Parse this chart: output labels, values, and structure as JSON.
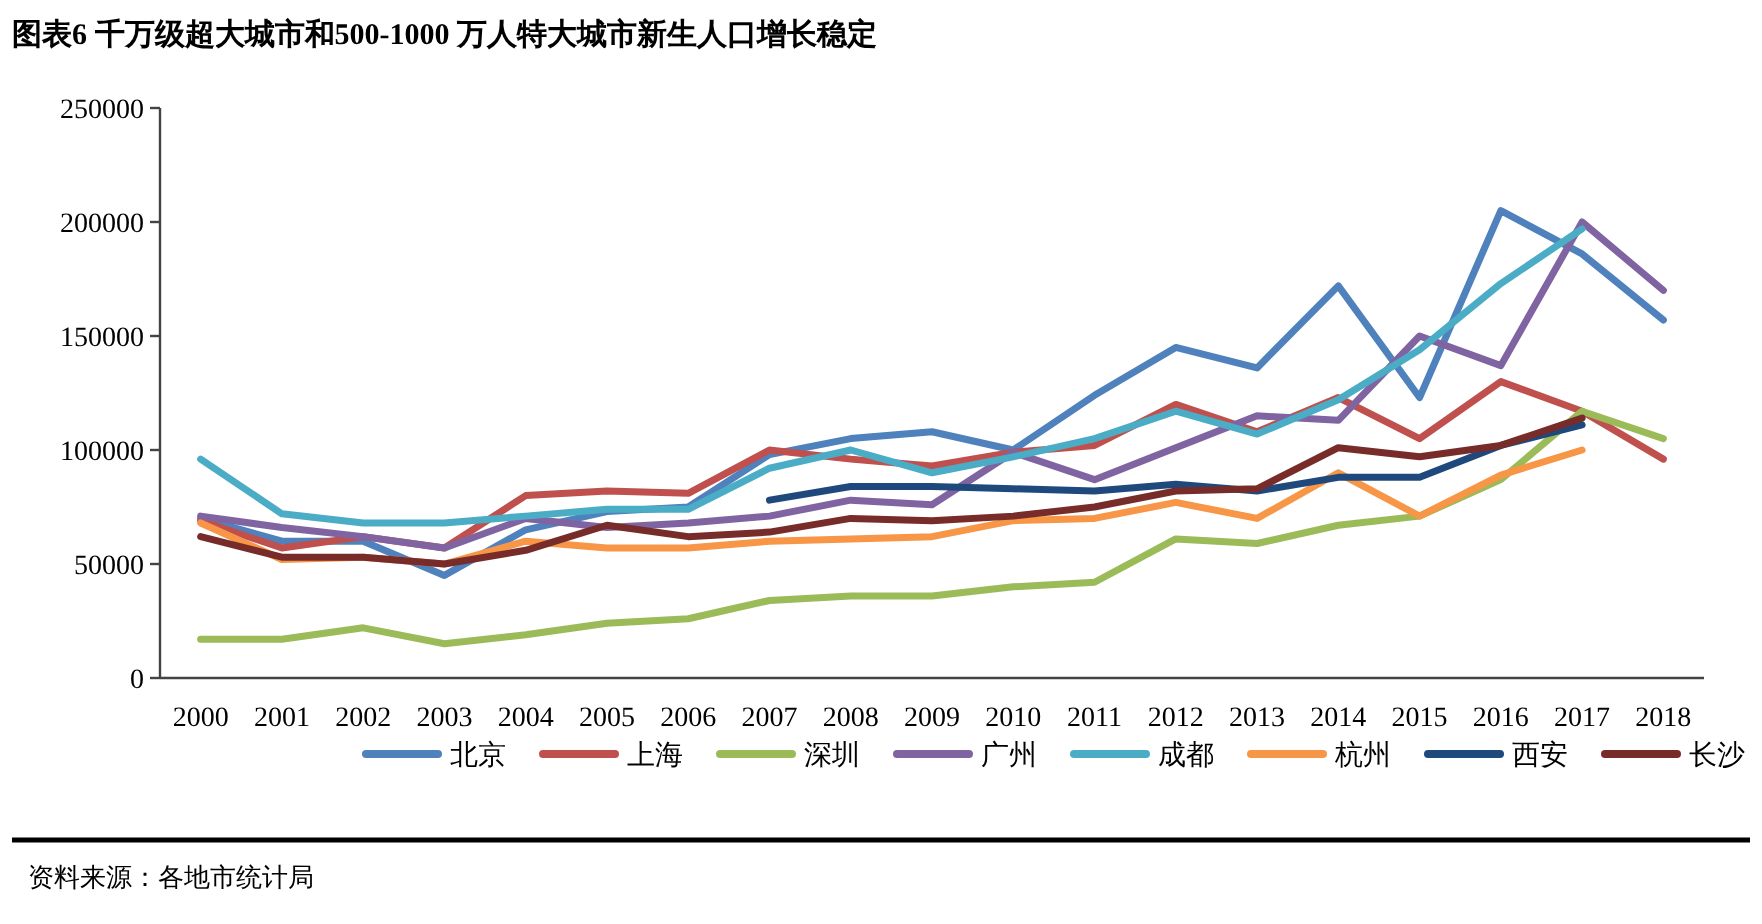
{
  "chart_data": {
    "type": "line",
    "title": "图表6 千万级超大城市和500-1000 万人特大城市新生人口增长稳定",
    "categories": [
      "2000",
      "2001",
      "2002",
      "2003",
      "2004",
      "2005",
      "2006",
      "2007",
      "2008",
      "2009",
      "2010",
      "2011",
      "2012",
      "2013",
      "2014",
      "2015",
      "2016",
      "2017",
      "2018"
    ],
    "series": [
      {
        "name": "北京",
        "color": "#4f81bd",
        "values": [
          70000,
          60000,
          60000,
          45000,
          65000,
          73000,
          75000,
          98000,
          105000,
          108000,
          100000,
          124000,
          145000,
          136000,
          172000,
          123000,
          205000,
          186000,
          157000
        ]
      },
      {
        "name": "上海",
        "color": "#c0504d",
        "values": [
          69000,
          57000,
          62000,
          57000,
          80000,
          82000,
          81000,
          100000,
          96000,
          93000,
          99000,
          102000,
          120000,
          108000,
          123000,
          105000,
          130000,
          117000,
          96000
        ]
      },
      {
        "name": "深圳",
        "color": "#9bbb59",
        "values": [
          17000,
          17000,
          22000,
          15000,
          19000,
          24000,
          26000,
          34000,
          36000,
          36000,
          40000,
          42000,
          61000,
          59000,
          67000,
          71000,
          87000,
          117000,
          105000
        ]
      },
      {
        "name": "广州",
        "color": "#8064a2",
        "values": [
          71000,
          66000,
          62000,
          57000,
          70000,
          66000,
          68000,
          71000,
          78000,
          76000,
          99000,
          87000,
          101000,
          115000,
          113000,
          150000,
          137000,
          200000,
          170000
        ]
      },
      {
        "name": "成都",
        "color": "#4bacc6",
        "values": [
          96000,
          72000,
          68000,
          68000,
          71000,
          74000,
          74000,
          92000,
          100000,
          90000,
          97000,
          105000,
          117000,
          107000,
          122000,
          144000,
          173000,
          197000,
          null
        ]
      },
      {
        "name": "杭州",
        "color": "#f79646",
        "values": [
          68000,
          52000,
          53000,
          50000,
          60000,
          57000,
          57000,
          60000,
          61000,
          62000,
          69000,
          70000,
          77000,
          70000,
          90000,
          71000,
          89000,
          100000,
          null
        ]
      },
      {
        "name": "西安",
        "color": "#1f497d",
        "values": [
          null,
          null,
          null,
          null,
          null,
          null,
          null,
          78000,
          84000,
          84000,
          83000,
          82000,
          85000,
          82000,
          88000,
          88000,
          102000,
          111000,
          null
        ]
      },
      {
        "name": "长沙",
        "color": "#772c2a",
        "values": [
          62000,
          53000,
          53000,
          50000,
          56000,
          67000,
          62000,
          64000,
          70000,
          69000,
          71000,
          75000,
          82000,
          83000,
          101000,
          97000,
          102000,
          114000,
          null
        ]
      }
    ],
    "ylim": [
      0,
      250000
    ],
    "yticks": [
      0,
      50000,
      100000,
      150000,
      200000,
      250000
    ],
    "grid": false,
    "legend": "bottom",
    "marker": "none",
    "line_style": "solid",
    "annotations": [
      "资料来源：各地市统计局"
    ]
  }
}
